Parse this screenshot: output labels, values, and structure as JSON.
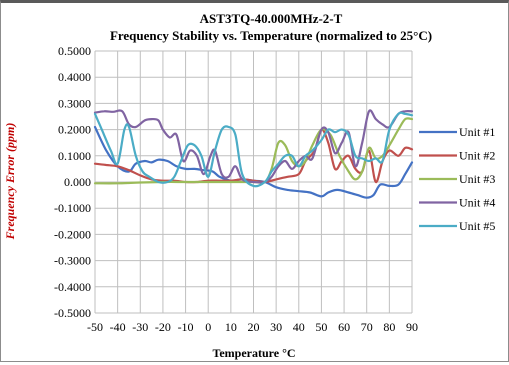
{
  "chart_data": {
    "type": "line",
    "title": "AST3TQ-40.000MHz-2-T",
    "subtitle": "Frequency Stability vs. Temperature (normalized to 25°C)",
    "xlabel": "Temperature °C",
    "ylabel": "Frequency Error (ppm)",
    "xlim": [
      -50,
      90
    ],
    "ylim": [
      -0.5,
      0.5
    ],
    "x_ticks": [
      "-50",
      "-40",
      "-30",
      "-20",
      "-10",
      "0",
      "10",
      "20",
      "30",
      "40",
      "50",
      "60",
      "70",
      "80",
      "90"
    ],
    "y_ticks": [
      "0.5000",
      "0.4000",
      "0.3000",
      "0.2000",
      "0.1000",
      "0.000",
      "-0.1000",
      "-0.2000",
      "-0.3000",
      "-0.4000",
      "-0.5000"
    ],
    "grid": true,
    "legend_position": "right",
    "series": [
      {
        "name": "Unit #1",
        "color": "#4472c4",
        "points": [
          [
            -50,
            0.21
          ],
          [
            -45,
            0.12
          ],
          [
            -40,
            0.06
          ],
          [
            -35,
            0.04
          ],
          [
            -32,
            0.07
          ],
          [
            -28,
            0.08
          ],
          [
            -25,
            0.075
          ],
          [
            -22,
            0.085
          ],
          [
            -18,
            0.08
          ],
          [
            -14,
            0.06
          ],
          [
            -10,
            0.05
          ],
          [
            -6,
            0.05
          ],
          [
            -2,
            0.045
          ],
          [
            2,
            0.04
          ],
          [
            5,
            0.02
          ],
          [
            10,
            0.005
          ],
          [
            15,
            0.01
          ],
          [
            20,
            0.005
          ],
          [
            25,
            0.0
          ],
          [
            30,
            -0.02
          ],
          [
            35,
            -0.03
          ],
          [
            40,
            -0.035
          ],
          [
            45,
            -0.04
          ],
          [
            50,
            -0.055
          ],
          [
            53,
            -0.04
          ],
          [
            57,
            -0.03
          ],
          [
            62,
            -0.04
          ],
          [
            66,
            -0.05
          ],
          [
            70,
            -0.06
          ],
          [
            73,
            -0.05
          ],
          [
            76,
            -0.01
          ],
          [
            80,
            -0.015
          ],
          [
            84,
            -0.01
          ],
          [
            87,
            0.03
          ],
          [
            90,
            0.075
          ]
        ]
      },
      {
        "name": "Unit #2",
        "color": "#c0504d",
        "points": [
          [
            -50,
            0.07
          ],
          [
            -45,
            0.065
          ],
          [
            -40,
            0.06
          ],
          [
            -35,
            0.045
          ],
          [
            -30,
            0.025
          ],
          [
            -25,
            0.01
          ],
          [
            -20,
            0.005
          ],
          [
            -15,
            0.005
          ],
          [
            -10,
            0.0
          ],
          [
            -5,
            0.0
          ],
          [
            0,
            0.005
          ],
          [
            5,
            0.005
          ],
          [
            10,
            0.005
          ],
          [
            15,
            0.01
          ],
          [
            20,
            0.005
          ],
          [
            25,
            0.0
          ],
          [
            30,
            0.01
          ],
          [
            35,
            0.02
          ],
          [
            40,
            0.03
          ],
          [
            43,
            0.08
          ],
          [
            47,
            0.12
          ],
          [
            50,
            0.2
          ],
          [
            53,
            0.15
          ],
          [
            56,
            0.05
          ],
          [
            59,
            0.08
          ],
          [
            62,
            0.1
          ],
          [
            65,
            0.05
          ],
          [
            68,
            0.04
          ],
          [
            71,
            0.12
          ],
          [
            74,
            0.0
          ],
          [
            77,
            0.08
          ],
          [
            80,
            0.12
          ],
          [
            84,
            0.1
          ],
          [
            87,
            0.13
          ],
          [
            90,
            0.125
          ]
        ]
      },
      {
        "name": "Unit #3",
        "color": "#9bbb59",
        "points": [
          [
            -50,
            -0.005
          ],
          [
            -40,
            -0.005
          ],
          [
            -30,
            -0.002
          ],
          [
            -20,
            0.0
          ],
          [
            -10,
            0.0
          ],
          [
            0,
            0.0
          ],
          [
            10,
            0.0
          ],
          [
            20,
            0.0
          ],
          [
            25,
            0.0
          ],
          [
            28,
            0.05
          ],
          [
            31,
            0.15
          ],
          [
            34,
            0.14
          ],
          [
            37,
            0.08
          ],
          [
            40,
            0.06
          ],
          [
            43,
            0.08
          ],
          [
            46,
            0.14
          ],
          [
            50,
            0.2
          ],
          [
            54,
            0.18
          ],
          [
            58,
            0.1
          ],
          [
            62,
            0.04
          ],
          [
            65,
            0.01
          ],
          [
            68,
            0.04
          ],
          [
            71,
            0.13
          ],
          [
            74,
            0.09
          ],
          [
            77,
            0.1
          ],
          [
            80,
            0.14
          ],
          [
            84,
            0.2
          ],
          [
            87,
            0.24
          ],
          [
            90,
            0.24
          ]
        ]
      },
      {
        "name": "Unit #4",
        "color": "#8064a2",
        "points": [
          [
            -50,
            0.265
          ],
          [
            -46,
            0.27
          ],
          [
            -42,
            0.268
          ],
          [
            -38,
            0.27
          ],
          [
            -35,
            0.22
          ],
          [
            -32,
            0.21
          ],
          [
            -28,
            0.235
          ],
          [
            -25,
            0.24
          ],
          [
            -22,
            0.235
          ],
          [
            -20,
            0.2
          ],
          [
            -17,
            0.17
          ],
          [
            -14,
            0.18
          ],
          [
            -11,
            0.08
          ],
          [
            -8,
            0.12
          ],
          [
            -5,
            0.1
          ],
          [
            -2,
            0.03
          ],
          [
            1,
            0.1
          ],
          [
            3,
            0.12
          ],
          [
            6,
            0.03
          ],
          [
            9,
            0.02
          ],
          [
            12,
            0.06
          ],
          [
            15,
            0.01
          ],
          [
            20,
            0.0
          ],
          [
            25,
            0.0
          ],
          [
            28,
            0.02
          ],
          [
            31,
            0.06
          ],
          [
            34,
            0.08
          ],
          [
            37,
            0.05
          ],
          [
            40,
            0.08
          ],
          [
            43,
            0.1
          ],
          [
            46,
            0.09
          ],
          [
            50,
            0.2
          ],
          [
            53,
            0.19
          ],
          [
            56,
            0.11
          ],
          [
            59,
            0.15
          ],
          [
            62,
            0.19
          ],
          [
            65,
            0.06
          ],
          [
            68,
            0.15
          ],
          [
            71,
            0.27
          ],
          [
            74,
            0.24
          ],
          [
            77,
            0.22
          ],
          [
            80,
            0.21
          ],
          [
            84,
            0.26
          ],
          [
            87,
            0.27
          ],
          [
            90,
            0.27
          ]
        ]
      },
      {
        "name": "Unit #5",
        "color": "#4bacc6",
        "points": [
          [
            -50,
            0.26
          ],
          [
            -47,
            0.2
          ],
          [
            -43,
            0.12
          ],
          [
            -40,
            0.07
          ],
          [
            -37,
            0.2
          ],
          [
            -35,
            0.21
          ],
          [
            -32,
            0.1
          ],
          [
            -29,
            0.04
          ],
          [
            -26,
            0.02
          ],
          [
            -22,
            0.0
          ],
          [
            -18,
            0.0
          ],
          [
            -15,
            0.02
          ],
          [
            -12,
            0.08
          ],
          [
            -9,
            0.14
          ],
          [
            -6,
            0.14
          ],
          [
            -3,
            0.1
          ],
          [
            0,
            0.02
          ],
          [
            3,
            0.12
          ],
          [
            6,
            0.2
          ],
          [
            9,
            0.21
          ],
          [
            12,
            0.18
          ],
          [
            15,
            0.03
          ],
          [
            20,
            -0.015
          ],
          [
            25,
            0.0
          ],
          [
            28,
            0.04
          ],
          [
            31,
            0.07
          ],
          [
            34,
            0.1
          ],
          [
            37,
            0.1
          ],
          [
            40,
            0.06
          ],
          [
            43,
            0.1
          ],
          [
            46,
            0.12
          ],
          [
            50,
            0.16
          ],
          [
            53,
            0.2
          ],
          [
            56,
            0.19
          ],
          [
            59,
            0.2
          ],
          [
            62,
            0.18
          ],
          [
            65,
            0.1
          ],
          [
            68,
            0.09
          ],
          [
            71,
            0.08
          ],
          [
            74,
            0.09
          ],
          [
            77,
            0.08
          ],
          [
            80,
            0.2
          ],
          [
            84,
            0.26
          ],
          [
            87,
            0.26
          ],
          [
            90,
            0.255
          ]
        ]
      }
    ]
  }
}
